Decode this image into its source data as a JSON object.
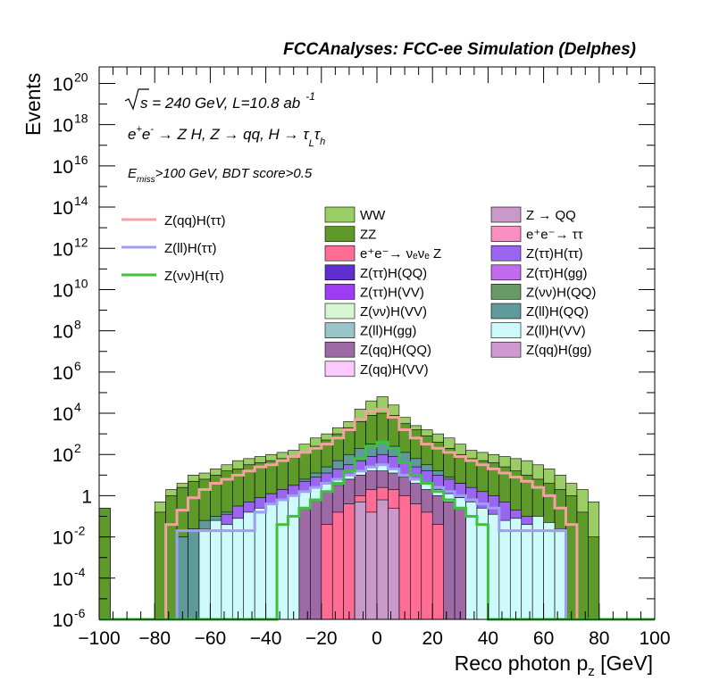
{
  "chart_data": {
    "type": "bar",
    "title": "FCCAnalyses: FCC-ee Simulation (Delphes)",
    "xlabel": "Reco photon p",
    "xlabel_sub": "z",
    "xlabel_unit": " [GeV]",
    "ylabel": "Events",
    "xlim": [
      -100,
      100
    ],
    "ylim_log10": [
      -6,
      20.8
    ],
    "yscale": "log",
    "x_ticks": [
      "−100",
      "−80",
      "−60",
      "−40",
      "−20",
      "0",
      "20",
      "40",
      "60",
      "80",
      "100"
    ],
    "y_ticks": [
      {
        "base": "10",
        "exp": "20"
      },
      {
        "base": "10",
        "exp": "18"
      },
      {
        "base": "10",
        "exp": "16"
      },
      {
        "base": "10",
        "exp": "14"
      },
      {
        "base": "10",
        "exp": "12"
      },
      {
        "base": "10",
        "exp": "10"
      },
      {
        "base": "10",
        "exp": "8"
      },
      {
        "base": "10",
        "exp": "6"
      },
      {
        "base": "10",
        "exp": "4"
      },
      {
        "base": "10",
        "exp": "2"
      },
      {
        "base": "1",
        "exp": ""
      },
      {
        "base": "10",
        "exp": "-2"
      },
      {
        "base": "10",
        "exp": "-4"
      },
      {
        "base": "10",
        "exp": "-6"
      }
    ],
    "annotations": {
      "energy_sqrt": "s",
      "energy_rest": " = 240 GeV, L=10.8 ab",
      "energy_exp": "-1",
      "process_a": "e",
      "process_b": "e",
      "process_c": " → Z H, Z  → qq, H  →  τ",
      "process_sub1": "L",
      "process_tau": "τ",
      "process_sub2": "h",
      "cut_e": "E",
      "cut_sub": "miss",
      "cut_rest": ">100 GeV, BDT score>0.5"
    },
    "legend_lines": [
      {
        "label": "Z(qq)H(ττ)",
        "color": "#f3a1a1"
      },
      {
        "label": "Z(ll)H(ττ)",
        "color": "#9e9ef5"
      },
      {
        "label": "Z(νν)H(ττ)",
        "color": "#3ec23e"
      }
    ],
    "legend_fill_col1": [
      {
        "label": "WW",
        "color": "#9acd66"
      },
      {
        "label": "ZZ",
        "color": "#5e9a2a"
      },
      {
        "label": "e⁺e⁻→ νₑνₑ Z",
        "color": "#ff6d95"
      },
      {
        "label": "Z(ττ)H(QQ)",
        "color": "#5e2ecf"
      },
      {
        "label": "Z(ττ)H(VV)",
        "color": "#9d3cf3"
      },
      {
        "label": "Z(νν)H(VV)",
        "color": "#d6f7d2"
      },
      {
        "label": "Z(ll)H(gg)",
        "color": "#99c5c8"
      },
      {
        "label": "Z(qq)H(QQ)",
        "color": "#9e6aa6"
      },
      {
        "label": "Z(qq)H(VV)",
        "color": "#fbc9fb"
      }
    ],
    "legend_fill_col2": [
      {
        "label": "Z → QQ",
        "color": "#c99ac9"
      },
      {
        "label": "e⁺e⁻→ ττ",
        "color": "#f88fc3"
      },
      {
        "label": "Z(ττ)H(ττ)",
        "color": "#9a66f0"
      },
      {
        "label": "Z(ττ)H(gg)",
        "color": "#c26bee"
      },
      {
        "label": "Z(νν)H(QQ)",
        "color": "#679a67"
      },
      {
        "label": "Z(ll)H(QQ)",
        "color": "#5f9a9b"
      },
      {
        "label": "Z(ll)H(VV)",
        "color": "#cdfafa"
      },
      {
        "label": "Z(qq)H(gg)",
        "color": "#cf99cf"
      }
    ],
    "bin_width": 4,
    "bins_x_low": [
      -100,
      -96,
      -92,
      -88,
      -84,
      -80,
      -76,
      -72,
      -68,
      -64,
      -60,
      -56,
      -52,
      -48,
      -44,
      -40,
      -36,
      -32,
      -28,
      -24,
      -20,
      -16,
      -12,
      -8,
      -4,
      0,
      4,
      8,
      12,
      16,
      20,
      24,
      28,
      32,
      36,
      40,
      44,
      48,
      52,
      56,
      60,
      64,
      68,
      72,
      76,
      80,
      84,
      88,
      92,
      96
    ],
    "stack_log10": [
      {
        "name": "WW",
        "color": "#9acd66",
        "values": [
          -0.6,
          -6,
          -6,
          -6,
          -6,
          -0.3,
          0.3,
          0.6,
          1.0,
          1.1,
          1.3,
          1.5,
          1.7,
          1.8,
          1.9,
          2.0,
          2.1,
          2.2,
          2.5,
          2.8,
          3.0,
          3.3,
          3.6,
          4.2,
          4.6,
          4.8,
          4.4,
          3.8,
          3.4,
          3.2,
          3.0,
          2.8,
          2.5,
          2.2,
          2.1,
          2.0,
          1.9,
          1.8,
          1.7,
          1.5,
          1.3,
          1.0,
          0.6,
          0.3,
          -0.3,
          -6,
          -6,
          -6,
          -6,
          -6
        ]
      },
      {
        "name": "ZZ",
        "color": "#5e9a2a",
        "values": [
          -0.6,
          -6,
          -6,
          -6,
          -6,
          -0.8,
          0.0,
          0.4,
          0.7,
          0.8,
          1.0,
          1.2,
          1.3,
          1.5,
          1.6,
          1.7,
          1.8,
          1.9,
          2.1,
          2.4,
          2.7,
          3.0,
          3.3,
          3.6,
          3.9,
          4.0,
          3.9,
          3.5,
          3.2,
          2.9,
          2.6,
          2.3,
          2.0,
          1.8,
          1.7,
          1.6,
          1.4,
          1.2,
          1.0,
          0.8,
          0.6,
          0.3,
          0.0,
          -0.8,
          -2.0,
          -6,
          -6,
          -6,
          -6,
          -6
        ]
      },
      {
        "name": "Z(ll)H(QQ)",
        "color": "#5f9a9b",
        "values": [
          -6,
          -6,
          -6,
          -6,
          -6,
          -6,
          -6,
          -2.0,
          -1.6,
          -1.2,
          -1.0,
          -0.8,
          -0.6,
          -0.4,
          -0.2,
          0.0,
          0.2,
          0.5,
          0.8,
          1.1,
          1.4,
          1.7,
          2.0,
          2.3,
          2.5,
          2.6,
          2.4,
          2.1,
          1.8,
          1.5,
          1.2,
          0.9,
          0.6,
          0.3,
          0.0,
          -0.3,
          -0.6,
          -0.9,
          -1.2,
          -1.6,
          -2.0,
          -6,
          -6,
          -6,
          -6,
          -6,
          -6,
          -6,
          -6,
          -6
        ]
      },
      {
        "name": "Z(ττ)H(ττ)",
        "color": "#9a66f0",
        "values": [
          -6,
          -6,
          -6,
          -6,
          -6,
          -6,
          -6,
          -6,
          -6,
          -6,
          -1.4,
          -0.9,
          -0.5,
          -0.3,
          -0.1,
          0.1,
          0.3,
          0.5,
          0.7,
          0.9,
          1.1,
          1.3,
          1.5,
          1.7,
          1.9,
          2.0,
          1.9,
          1.6,
          1.4,
          1.2,
          1.0,
          0.8,
          0.6,
          0.4,
          0.2,
          0.0,
          -0.3,
          -0.7,
          -1.0,
          -1.4,
          -6,
          -6,
          -6,
          -6,
          -6,
          -6,
          -6,
          -6,
          -6,
          -6
        ]
      },
      {
        "name": "Z(ll)H(VV)",
        "color": "#cdfafa",
        "values": [
          -6,
          -6,
          -6,
          -6,
          -6,
          -6,
          -6,
          -6,
          -6,
          -1.6,
          -1.2,
          -1.4,
          -1.1,
          -0.8,
          -0.6,
          -0.4,
          -0.2,
          0.0,
          0.2,
          0.4,
          0.6,
          0.8,
          1.0,
          1.2,
          1.4,
          1.5,
          1.3,
          1.0,
          0.8,
          0.6,
          0.3,
          0.1,
          -0.1,
          -0.3,
          -0.6,
          -0.9,
          -1.2,
          -1.1,
          -1.4,
          -1.0,
          -1.3,
          -1.6,
          -6,
          -6,
          -6,
          -6,
          -6,
          -6,
          -6,
          -6
        ]
      },
      {
        "name": "Z(qq)H(QQ)",
        "color": "#9e6aa6",
        "values": [
          -6,
          -6,
          -6,
          -6,
          -6,
          -6,
          -6,
          -6,
          -6,
          -6,
          -6,
          -6,
          -6,
          -6,
          -6,
          -6,
          -6,
          -6,
          -0.6,
          -0.2,
          0.2,
          0.5,
          0.8,
          1.0,
          1.2,
          1.2,
          1.1,
          0.9,
          0.6,
          0.3,
          0.0,
          -0.3,
          -0.6,
          -6,
          -6,
          -6,
          -6,
          -6,
          -6,
          -6,
          -6,
          -6,
          -6,
          -6,
          -6,
          -6,
          -6,
          -6,
          -6,
          -6
        ]
      },
      {
        "name": "e⁺e⁻→ νₑνₑ Z",
        "color": "#ff6d95",
        "values": [
          -6,
          -6,
          -6,
          -6,
          -6,
          -6,
          -6,
          -6,
          -6,
          -6,
          -6,
          -6,
          -6,
          -6,
          -6,
          -6,
          -6,
          -6,
          -6,
          -6,
          -1.4,
          -0.8,
          -0.4,
          0.0,
          0.3,
          0.4,
          0.3,
          0.0,
          -0.4,
          -0.8,
          -1.4,
          -6,
          -6,
          -6,
          -6,
          -6,
          -6,
          -6,
          -6,
          -6,
          -6,
          -6,
          -6,
          -6,
          -6,
          -6,
          -6,
          -6,
          -6,
          -6
        ]
      },
      {
        "name": "Z → QQ",
        "color": "#c99ac9",
        "values": [
          -6,
          -6,
          -6,
          -6,
          -6,
          -6,
          -6,
          -6,
          -6,
          -6,
          -6,
          -6,
          -6,
          -6,
          -6,
          -6,
          -6,
          -6,
          -6,
          -6,
          -6,
          -6,
          -6,
          -0.3,
          -0.8,
          -0.2,
          -0.6,
          -6,
          -6,
          -6,
          -6,
          -6,
          -6,
          -6,
          -6,
          -6,
          -6,
          -6,
          -6,
          -6,
          -6,
          -6,
          -6,
          -6,
          -6,
          -6,
          -6,
          -6,
          -6,
          -6
        ]
      }
    ],
    "lines_log10": [
      {
        "name": "Z(qq)H(ττ)",
        "color": "#f3a1a1",
        "values": [
          -6,
          -6,
          -6,
          -6,
          -6,
          -6,
          -1.4,
          -0.7,
          -0.1,
          0.3,
          0.6,
          0.8,
          1.0,
          1.2,
          1.4,
          1.5,
          1.7,
          1.9,
          2.1,
          2.3,
          2.5,
          2.8,
          3.2,
          3.7,
          4.1,
          4.2,
          3.8,
          3.2,
          2.8,
          2.5,
          2.3,
          2.1,
          1.9,
          1.7,
          1.5,
          1.3,
          1.1,
          0.9,
          0.7,
          0.4,
          0.0,
          -0.6,
          -1.4,
          -6,
          -6,
          -6,
          -6,
          -6,
          -6,
          -6
        ]
      },
      {
        "name": "Z(ll)H(ττ)",
        "color": "#9e9ef5",
        "values": [
          -6,
          -6,
          -6,
          -6,
          -6,
          -6,
          -6,
          -1.7,
          -1.7,
          -1.7,
          -1.7,
          -1.7,
          -1.7,
          -1.7,
          -0.8,
          -0.4,
          -0.2,
          0.0,
          0.2,
          0.4,
          0.6,
          0.8,
          1.0,
          1.2,
          1.4,
          1.5,
          1.3,
          1.0,
          0.8,
          0.6,
          0.4,
          0.2,
          0.0,
          -0.2,
          -0.4,
          -0.6,
          -1.7,
          -1.7,
          -1.7,
          -1.7,
          -1.7,
          -1.7,
          -6,
          -6,
          -6,
          -6,
          -6,
          -6,
          -6,
          -6
        ]
      },
      {
        "name": "Z(νν)H(ττ)",
        "color": "#3ec23e",
        "values": [
          -6,
          -6,
          -6,
          -6,
          -6,
          -6,
          -6,
          -6,
          -6,
          -6,
          -6,
          -6,
          -6,
          -6,
          -6,
          -6,
          -1.4,
          -1.0,
          -0.6,
          -0.2,
          0.2,
          0.6,
          1.2,
          1.8,
          2.4,
          2.6,
          2.3,
          1.6,
          1.0,
          0.6,
          0.2,
          -0.2,
          -0.6,
          -1.0,
          -1.4,
          -6,
          -6,
          -6,
          -6,
          -6,
          -6,
          -6,
          -6,
          -6,
          -6,
          -6,
          -6,
          -6,
          -6,
          -6
        ]
      }
    ]
  }
}
